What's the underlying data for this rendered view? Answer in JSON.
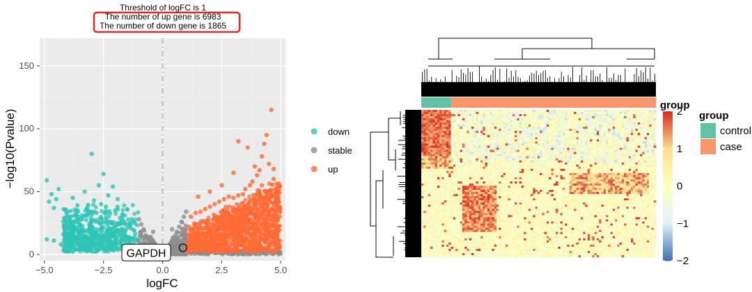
{
  "chart_data": [
    {
      "type": "scatter",
      "title": "",
      "annotation": [
        "Threshold of logFC is 1",
        "The number of up gene is 6983",
        "The number of down gene is 1865"
      ],
      "xlabel": "logFC",
      "ylabel": "−log10(Pvalue)",
      "xlim": [
        -5.2,
        5.2
      ],
      "ylim": [
        -5,
        172
      ],
      "xticks": [
        -5.0,
        -2.5,
        0.0,
        2.5,
        5.0
      ],
      "xtick_labels": [
        "−5.0",
        "−2.5",
        "0.0",
        "2.5",
        "5.0"
      ],
      "yticks": [
        0,
        50,
        100,
        150
      ],
      "ytick_labels": [
        "0",
        "50",
        "100",
        "150"
      ],
      "threshold_line_x": 0,
      "grid": true,
      "legend_position": "right",
      "legend": [
        {
          "name": "down",
          "color": "#2EC4B6"
        },
        {
          "name": "stable",
          "color": "#8C8C8C"
        },
        {
          "name": "up",
          "color": "#FF6B35"
        }
      ],
      "highlight": {
        "label": "GAPDH",
        "x": 1.1,
        "y": 7
      },
      "series": [
        {
          "name": "down",
          "color": "#2EC4B6",
          "points": [
            [
              -4.9,
              59
            ],
            [
              -4.8,
              42
            ],
            [
              -4.7,
              48
            ],
            [
              -4.6,
              37
            ],
            [
              -4.5,
              44
            ],
            [
              -4.4,
              52
            ],
            [
              -4.9,
              12
            ],
            [
              -4.6,
              11
            ],
            [
              -4.2,
              26
            ],
            [
              -4.0,
              34
            ],
            [
              -3.9,
              22
            ],
            [
              -3.8,
              45
            ],
            [
              -3.7,
              31
            ],
            [
              -3.6,
              39
            ],
            [
              -3.5,
              17
            ],
            [
              -3.4,
              28
            ],
            [
              -3.3,
              50
            ],
            [
              -3.2,
              36
            ],
            [
              -3.1,
              24
            ],
            [
              -3.0,
              80
            ],
            [
              -2.9,
              43
            ],
            [
              -2.8,
              33
            ],
            [
              -2.7,
              55
            ],
            [
              -2.6,
              29
            ],
            [
              -2.5,
              64
            ],
            [
              -2.4,
              38
            ],
            [
              -2.3,
              47
            ],
            [
              -2.2,
              26
            ],
            [
              -2.1,
              54
            ],
            [
              -2.0,
              35
            ],
            [
              -1.9,
              44
            ],
            [
              -1.8,
              29
            ],
            [
              -1.7,
              31
            ],
            [
              -1.6,
              24
            ],
            [
              -1.5,
              36
            ],
            [
              -1.4,
              22
            ],
            [
              -1.3,
              28
            ],
            [
              -1.2,
              19
            ],
            [
              -3.5,
              15
            ],
            [
              -3.0,
              13
            ],
            [
              -2.5,
              14
            ],
            [
              -2.0,
              13
            ],
            [
              -1.5,
              14
            ],
            [
              -1.2,
              12
            ],
            [
              -2.8,
              20
            ],
            [
              -2.2,
              18
            ],
            [
              -1.8,
              16
            ],
            [
              -3.8,
              9
            ],
            [
              -4.3,
              8
            ],
            [
              -2.6,
              40
            ],
            [
              -1.9,
              36
            ]
          ]
        },
        {
          "name": "stable",
          "color": "#8C8C8C",
          "points": [
            [
              -1.0,
              28
            ],
            [
              -0.9,
              24
            ],
            [
              -0.8,
              20
            ],
            [
              -0.7,
              15
            ],
            [
              -0.6,
              12
            ],
            [
              -0.5,
              10
            ],
            [
              -0.4,
              8
            ],
            [
              -0.3,
              6
            ],
            [
              -0.2,
              4
            ],
            [
              -0.1,
              3
            ],
            [
              0.1,
              3
            ],
            [
              0.2,
              5
            ],
            [
              0.3,
              8
            ],
            [
              0.4,
              11
            ],
            [
              0.5,
              14
            ],
            [
              0.6,
              18
            ],
            [
              0.7,
              22
            ],
            [
              0.8,
              26
            ],
            [
              0.9,
              30
            ],
            [
              1.0,
              34
            ],
            [
              -1.0,
              10
            ],
            [
              -0.6,
              4
            ],
            [
              0.6,
              5
            ],
            [
              1.0,
              12
            ],
            [
              -0.8,
              6
            ],
            [
              0.8,
              8
            ],
            [
              -0.4,
              18
            ],
            [
              0.4,
              20
            ],
            [
              0.9,
              17
            ],
            [
              -0.9,
              15
            ]
          ]
        },
        {
          "name": "up",
          "color": "#FF6B35",
          "points": [
            [
              4.6,
              115
            ],
            [
              4.4,
              95
            ],
            [
              4.3,
              88
            ],
            [
              4.2,
              78
            ],
            [
              4.5,
              72
            ],
            [
              4.1,
              67
            ],
            [
              3.9,
              70
            ],
            [
              4.0,
              63
            ],
            [
              3.8,
              58
            ],
            [
              3.7,
              55
            ],
            [
              3.5,
              52
            ],
            [
              3.4,
              48
            ],
            [
              3.2,
              47
            ],
            [
              3.0,
              45
            ],
            [
              2.8,
              46
            ],
            [
              2.6,
              44
            ],
            [
              2.4,
              42
            ],
            [
              2.2,
              40
            ],
            [
              2.0,
              38
            ],
            [
              1.8,
              36
            ],
            [
              1.6,
              34
            ],
            [
              1.4,
              33
            ],
            [
              1.2,
              30
            ],
            [
              1.1,
              22
            ],
            [
              3.2,
              90
            ],
            [
              3.6,
              85
            ],
            [
              3.0,
              65
            ],
            [
              2.5,
              55
            ],
            [
              2.0,
              50
            ],
            [
              1.5,
              46
            ],
            [
              4.7,
              60
            ],
            [
              4.8,
              48
            ],
            [
              4.9,
              42
            ],
            [
              4.6,
              35
            ],
            [
              4.3,
              40
            ],
            [
              4.0,
              30
            ],
            [
              3.7,
              28
            ],
            [
              3.3,
              26
            ],
            [
              3.0,
              24
            ],
            [
              2.7,
              22
            ],
            [
              2.4,
              20
            ],
            [
              2.1,
              18
            ],
            [
              1.8,
              16
            ],
            [
              1.5,
              15
            ],
            [
              1.2,
              14
            ],
            [
              4.9,
              20
            ],
            [
              4.8,
              10
            ],
            [
              4.5,
              15
            ],
            [
              4.2,
              12
            ],
            [
              3.8,
              10
            ],
            [
              3.4,
              9
            ],
            [
              3.0,
              8
            ],
            [
              2.6,
              7
            ],
            [
              2.2,
              8
            ],
            [
              1.8,
              9
            ],
            [
              1.4,
              10
            ],
            [
              4.4,
              28
            ],
            [
              3.9,
              44
            ],
            [
              3.5,
              38
            ],
            [
              3.1,
              36
            ],
            [
              2.8,
              33
            ],
            [
              2.5,
              31
            ],
            [
              2.2,
              29
            ],
            [
              1.9,
              27
            ],
            [
              1.6,
              25
            ],
            [
              4.7,
              68
            ],
            [
              4.2,
              55
            ]
          ]
        }
      ]
    },
    {
      "type": "heatmap",
      "title": "",
      "legend_title": "group",
      "groups": [
        {
          "name": "control",
          "color": "#5FC3A4"
        },
        {
          "name": "case",
          "color": "#F9966B"
        }
      ],
      "colorbar_title": "group",
      "colorbar_range": [
        -2,
        2
      ],
      "colorbar_ticks": [
        2,
        1,
        0,
        -1,
        -2
      ],
      "colorbar_tick_labels": [
        "2",
        "1",
        "0",
        "−1",
        "−2"
      ],
      "colorbar_colors": [
        "#D73027",
        "#FEE090",
        "#FFFFBF",
        "#E0F3F8",
        "#4575B4"
      ],
      "n_control_cols": 13,
      "n_case_cols": 90,
      "row_dendrogram": true,
      "column_dendrogram": true
    }
  ]
}
